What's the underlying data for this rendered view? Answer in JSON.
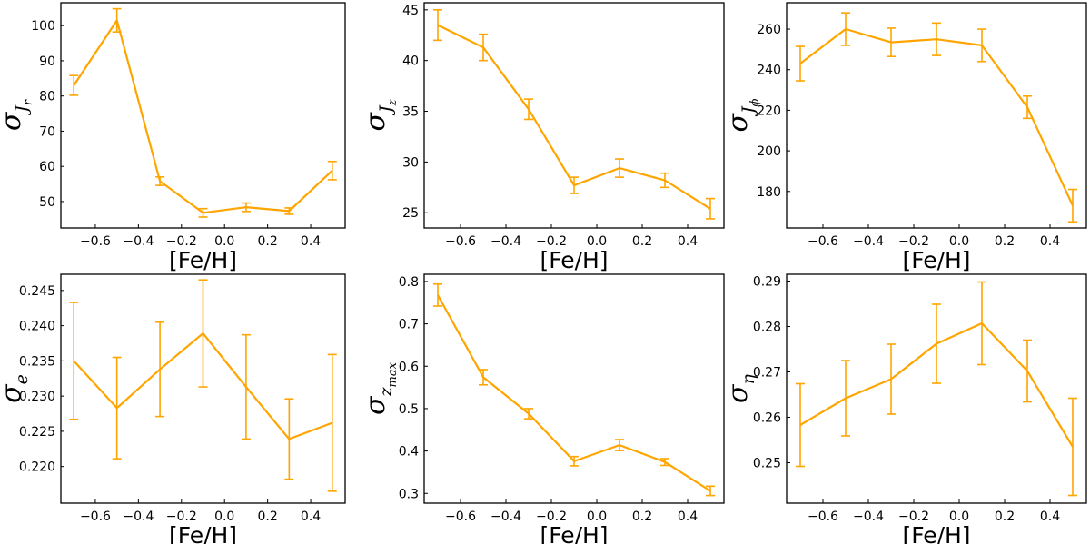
{
  "figure": {
    "line_color": "#FFA500",
    "background": "#FFFFFF"
  },
  "chart_data": [
    {
      "type": "line",
      "xlabel": "[Fe/H]",
      "ylabel": {
        "base": "σ",
        "sub": "J",
        "subsub": "r"
      },
      "x": [
        -0.7,
        -0.5,
        -0.3,
        -0.1,
        0.1,
        0.3,
        0.5
      ],
      "values": [
        83.0,
        101.5,
        55.8,
        46.8,
        48.4,
        47.3,
        58.8
      ],
      "errors": [
        2.8,
        3.3,
        1.2,
        1.2,
        1.2,
        0.9,
        2.6
      ],
      "xlim": [
        -0.76,
        0.56
      ],
      "ylim": [
        42.5,
        106.5
      ],
      "xticks": [
        -0.6,
        -0.4,
        -0.2,
        0.0,
        0.2,
        0.4
      ],
      "xtick_labels": [
        "−0.6",
        "−0.4",
        "−0.2",
        "0.0",
        "0.2",
        "0.4"
      ],
      "yticks": [
        50,
        60,
        70,
        80,
        90,
        100
      ],
      "ytick_labels": [
        "50",
        "60",
        "70",
        "80",
        "90",
        "100"
      ]
    },
    {
      "type": "line",
      "xlabel": "[Fe/H]",
      "ylabel": {
        "base": "σ",
        "sub": "J",
        "subsub": "z"
      },
      "x": [
        -0.7,
        -0.5,
        -0.3,
        -0.1,
        0.1,
        0.3,
        0.5
      ],
      "values": [
        43.5,
        41.3,
        35.2,
        27.7,
        29.4,
        28.2,
        25.4
      ],
      "errors": [
        1.5,
        1.3,
        1.0,
        0.8,
        0.9,
        0.7,
        1.0
      ],
      "xlim": [
        -0.76,
        0.56
      ],
      "ylim": [
        23.5,
        45.7
      ],
      "xticks": [
        -0.6,
        -0.4,
        -0.2,
        0.0,
        0.2,
        0.4
      ],
      "xtick_labels": [
        "−0.6",
        "−0.4",
        "−0.2",
        "0.0",
        "0.2",
        "0.4"
      ],
      "yticks": [
        25,
        30,
        35,
        40,
        45
      ],
      "ytick_labels": [
        "25",
        "30",
        "35",
        "40",
        "45"
      ]
    },
    {
      "type": "line",
      "xlabel": "[Fe/H]",
      "ylabel": {
        "base": "σ",
        "sub": "J",
        "subsub": "ϕ"
      },
      "x": [
        -0.7,
        -0.5,
        -0.3,
        -0.1,
        0.1,
        0.3,
        0.5
      ],
      "values": [
        243.0,
        260.0,
        253.5,
        255.0,
        252.0,
        221.5,
        173.0
      ],
      "errors": [
        8.5,
        8.0,
        7.0,
        8.0,
        8.0,
        5.5,
        8.0
      ],
      "xlim": [
        -0.76,
        0.56
      ],
      "ylim": [
        162.0,
        273.0
      ],
      "xticks": [
        -0.6,
        -0.4,
        -0.2,
        0.0,
        0.2,
        0.4
      ],
      "xtick_labels": [
        "−0.6",
        "−0.4",
        "−0.2",
        "0.0",
        "0.2",
        "0.4"
      ],
      "yticks": [
        180,
        200,
        220,
        240,
        260
      ],
      "ytick_labels": [
        "180",
        "200",
        "220",
        "240",
        "260"
      ]
    },
    {
      "type": "line",
      "xlabel": "[Fe/H]",
      "ylabel": {
        "base": "σ",
        "sub": "e",
        "subsub": ""
      },
      "x": [
        -0.7,
        -0.5,
        -0.3,
        -0.1,
        0.1,
        0.3,
        0.5
      ],
      "values": [
        0.235,
        0.2283,
        0.2338,
        0.2389,
        0.2313,
        0.2239,
        0.2262
      ],
      "errors": [
        0.0083,
        0.0072,
        0.0067,
        0.0076,
        0.0074,
        0.0057,
        0.0097
      ],
      "xlim": [
        -0.76,
        0.56
      ],
      "ylim": [
        0.2148,
        0.2473
      ],
      "xticks": [
        -0.6,
        -0.4,
        -0.2,
        0.0,
        0.2,
        0.4
      ],
      "xtick_labels": [
        "−0.6",
        "−0.4",
        "−0.2",
        "0.0",
        "0.2",
        "0.4"
      ],
      "yticks": [
        0.22,
        0.225,
        0.23,
        0.235,
        0.24,
        0.245
      ],
      "ytick_labels": [
        "0.220",
        "0.225",
        "0.230",
        "0.235",
        "0.240",
        "0.245"
      ]
    },
    {
      "type": "line",
      "xlabel": "[Fe/H]",
      "ylabel": {
        "base": "σ",
        "sub": "z",
        "subsub": "max"
      },
      "x": [
        -0.7,
        -0.5,
        -0.3,
        -0.1,
        0.1,
        0.3,
        0.5
      ],
      "values": [
        0.768,
        0.574,
        0.488,
        0.376,
        0.414,
        0.374,
        0.306
      ],
      "errors": [
        0.026,
        0.018,
        0.012,
        0.011,
        0.013,
        0.008,
        0.011
      ],
      "xlim": [
        -0.76,
        0.56
      ],
      "ylim": [
        0.277,
        0.817
      ],
      "xticks": [
        -0.6,
        -0.4,
        -0.2,
        0.0,
        0.2,
        0.4
      ],
      "xtick_labels": [
        "−0.6",
        "−0.4",
        "−0.2",
        "0.0",
        "0.2",
        "0.4"
      ],
      "yticks": [
        0.3,
        0.4,
        0.5,
        0.6,
        0.7,
        0.8
      ],
      "ytick_labels": [
        "0.3",
        "0.4",
        "0.5",
        "0.6",
        "0.7",
        "0.8"
      ]
    },
    {
      "type": "line",
      "xlabel": "[Fe/H]",
      "ylabel": {
        "base": "σ",
        "sub": "η",
        "subsub": ""
      },
      "x": [
        -0.7,
        -0.5,
        -0.3,
        -0.1,
        0.1,
        0.3,
        0.5
      ],
      "values": [
        0.2583,
        0.2642,
        0.2684,
        0.2762,
        0.2807,
        0.2702,
        0.2535
      ],
      "errors": [
        0.0091,
        0.0083,
        0.0077,
        0.0087,
        0.0091,
        0.0068,
        0.0107
      ],
      "xlim": [
        -0.76,
        0.56
      ],
      "ylim": [
        0.2411,
        0.2915
      ],
      "xticks": [
        -0.6,
        -0.4,
        -0.2,
        0.0,
        0.2,
        0.4
      ],
      "xtick_labels": [
        "−0.6",
        "−0.4",
        "−0.2",
        "0.0",
        "0.2",
        "0.4"
      ],
      "yticks": [
        0.25,
        0.26,
        0.27,
        0.28,
        0.29
      ],
      "ytick_labels": [
        "0.25",
        "0.26",
        "0.27",
        "0.28",
        "0.29"
      ]
    }
  ]
}
